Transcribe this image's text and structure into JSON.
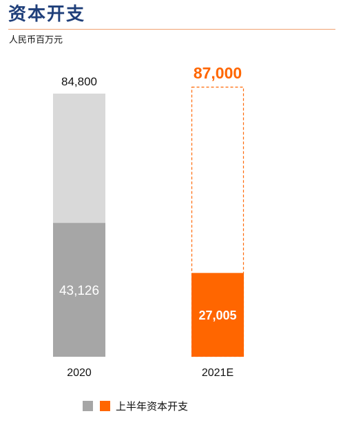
{
  "page": {
    "title": "资本开支",
    "unit": "人民币百万元"
  },
  "legend": {
    "label": "上半年资本开支",
    "swatches": [
      {
        "name": "2020",
        "color": "#a6a6a6"
      },
      {
        "name": "2021E",
        "color": "#ff6600"
      }
    ]
  },
  "colors": {
    "title": "#1f3f7a",
    "rule": "#f0a070",
    "total_2020": "#d9d9d9",
    "h1_2020": "#a6a6a6",
    "accent": "#ff6600"
  },
  "chart_data": {
    "type": "bar",
    "stacked": true,
    "categories": [
      "2020",
      "2021E"
    ],
    "series": [
      {
        "name": "上半年资本开支",
        "values": [
          43126,
          27005
        ],
        "value_labels": [
          "43,126",
          "27,005"
        ]
      }
    ],
    "totals": [
      84800,
      87000
    ],
    "total_labels": [
      "84,800",
      "87,000"
    ],
    "total_style": [
      "solid",
      "dashed-outline"
    ],
    "ylim": [
      0,
      87000
    ],
    "xlabel": "",
    "ylabel": "",
    "grid": false,
    "legend_position": "bottom"
  }
}
